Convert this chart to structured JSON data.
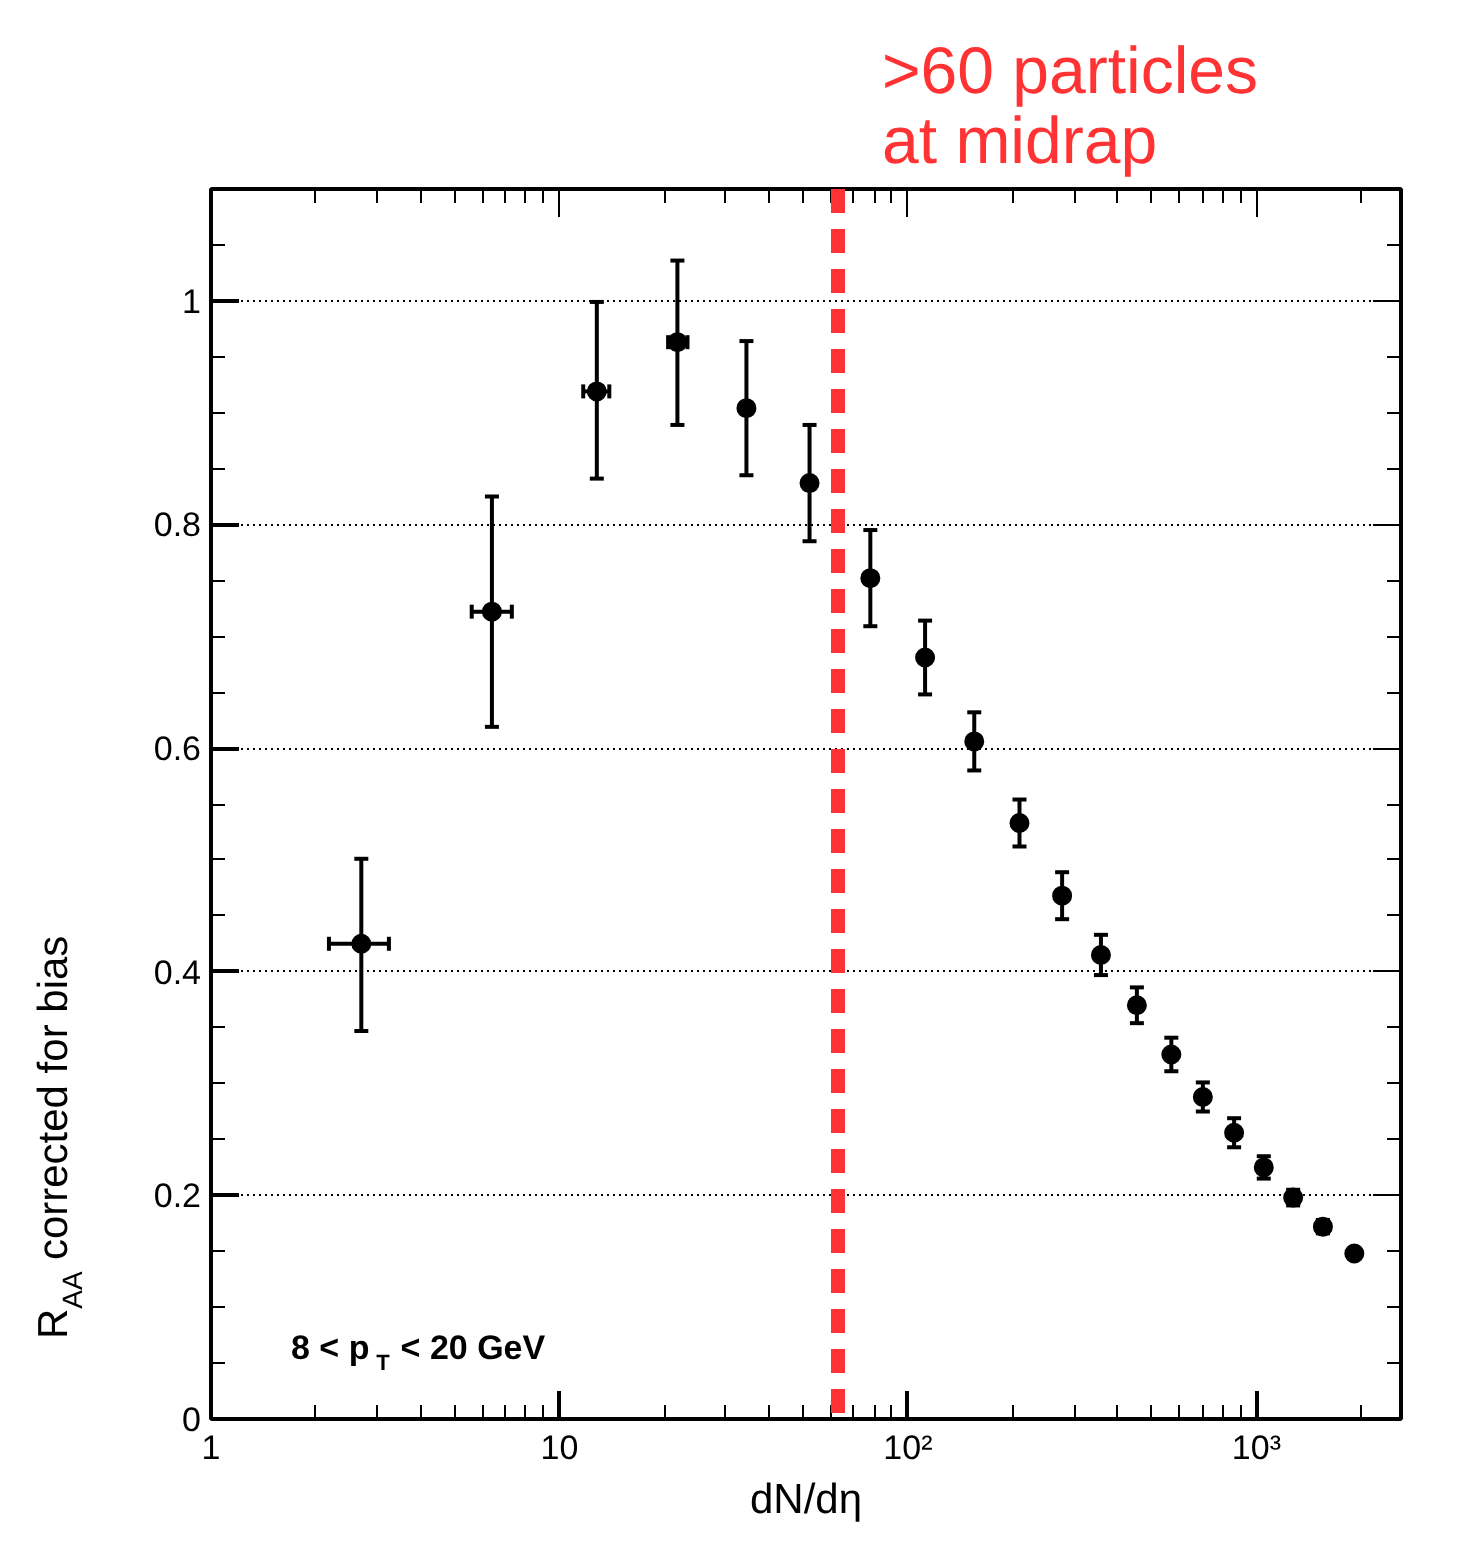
{
  "chart_data": {
    "type": "scatter",
    "xlabel": "dN/dη",
    "ylabel": "R$_{AA}$ corrected for bias",
    "log": "x",
    "xlim": [
      1,
      2600
    ],
    "ylim": [
      0,
      1.1
    ],
    "xticks": [
      1,
      10,
      {
        "value": 100,
        "label": "10²"
      },
      {
        "value": 1000,
        "label": "10³"
      }
    ],
    "yticks": [
      0,
      0.2,
      0.4,
      0.6,
      0.8,
      1
    ],
    "grid": "y",
    "marker": "circle",
    "series": [
      {
        "color": "#000000",
        "x": [
          2.7,
          6.4,
          12.8,
          21.8,
          34.4,
          52.2,
          78,
          112,
          155,
          209,
          277,
          358,
          454,
          570,
          702,
          863,
          1050,
          1275,
          1552,
          1910
        ],
        "values": [
          0.425,
          0.722,
          0.919,
          0.963,
          0.904,
          0.837,
          0.752,
          0.681,
          0.606,
          0.533,
          0.468,
          0.415,
          0.37,
          0.326,
          0.288,
          0.256,
          0.225,
          0.198,
          0.172,
          0.148
        ],
        "errors": [
          [
            0.347,
            0.501
          ],
          [
            0.619,
            0.825
          ],
          [
            0.841,
            0.999
          ],
          [
            0.889,
            1.036
          ],
          [
            0.844,
            0.964
          ],
          [
            0.785,
            0.889
          ],
          0.043,
          0.033,
          0.026,
          0.021,
          0.021,
          0.018,
          0.016,
          0.015,
          0.013,
          0.013,
          0.01,
          0.007,
          0.006,
          null
        ],
        "xerrors": [
          [
            2.18,
            3.24
          ],
          [
            5.6,
            7.3
          ],
          [
            11.7,
            13.9
          ],
          [
            20.5,
            23.3
          ],
          null,
          null,
          null,
          null,
          null,
          null,
          null,
          null,
          null,
          null,
          null,
          null,
          null,
          null,
          null,
          null
        ]
      }
    ],
    "ref_lines": [
      {
        "axis": "x",
        "value": 63,
        "label": ">60 particles\n  at midrap",
        "color": "#ff3333",
        "line_style": "dashed"
      }
    ],
    "annotations": [
      {
        "text": "8 < p$_{T}$ < 20 GeV"
      }
    ]
  }
}
